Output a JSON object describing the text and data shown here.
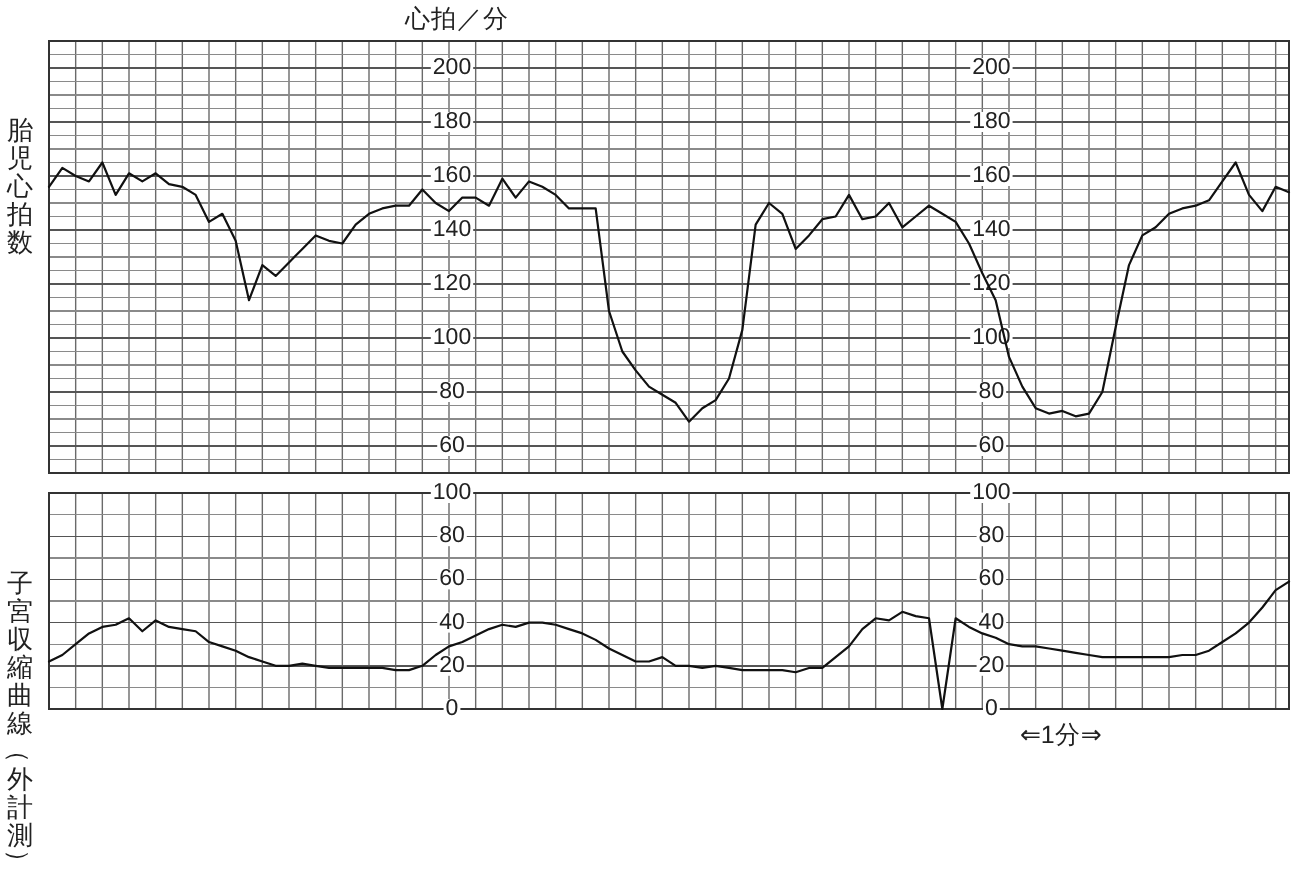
{
  "chart_data": [
    {
      "type": "line",
      "ylabel": "胎児心拍数",
      "annotations": [
        "心拍／分"
      ],
      "grid": true,
      "tick_labels": "y",
      "categories": [
        null,
        null,
        null,
        null,
        null,
        null,
        null,
        null,
        null,
        null,
        null,
        null,
        null,
        null,
        null,
        null,
        null,
        null,
        null,
        null,
        null,
        null,
        null,
        null,
        null,
        null,
        null,
        null,
        null,
        null,
        null,
        null,
        null,
        null,
        null,
        null,
        null,
        null,
        null,
        null,
        null,
        null,
        null,
        null,
        null,
        null,
        null,
        null,
        null,
        null,
        null,
        null,
        null,
        null,
        null,
        null,
        null,
        null,
        null,
        null,
        null,
        null,
        null,
        null,
        null,
        null,
        null,
        null,
        null,
        null,
        null,
        null,
        null,
        null,
        null,
        null,
        null,
        null,
        null,
        null,
        null,
        null,
        null,
        null,
        null,
        null,
        null,
        null,
        null,
        null,
        null,
        null,
        null,
        null
      ],
      "series": [
        {
          "color": "#111111",
          "values": [
            156,
            163,
            160,
            158,
            165,
            153,
            161,
            158,
            161,
            157,
            156,
            153,
            143,
            146,
            136,
            114,
            127,
            123,
            128,
            133,
            138,
            136,
            135,
            142,
            146,
            148,
            149,
            149,
            155,
            150,
            147,
            152,
            152,
            149,
            159,
            152,
            158,
            156,
            153,
            148,
            148,
            148,
            110,
            95,
            88,
            82,
            79,
            76,
            69,
            74,
            77,
            85,
            103,
            142,
            150,
            146,
            133,
            138,
            144,
            145,
            153,
            144,
            145,
            150,
            141,
            145,
            149,
            146,
            143,
            135,
            124,
            114,
            93,
            82,
            74,
            72,
            73,
            71,
            72,
            80,
            104,
            127,
            138,
            141,
            146,
            148,
            149,
            151,
            158,
            165,
            153,
            147,
            156,
            154
          ]
        }
      ],
      "ylim": [
        50,
        210
      ],
      "yticks": [
        {
          "value": 50,
          "label": null
        },
        {
          "value": 55,
          "label": null
        },
        60,
        {
          "value": 65,
          "label": null
        },
        {
          "value": 70,
          "label": null
        },
        {
          "value": 75,
          "label": null
        },
        80,
        {
          "value": 85,
          "label": null
        },
        {
          "value": 90,
          "label": null
        },
        {
          "value": 95,
          "label": null
        },
        100,
        {
          "value": 105,
          "label": null
        },
        {
          "value": 110,
          "label": null
        },
        {
          "value": 115,
          "label": null
        },
        120,
        {
          "value": 125,
          "label": null
        },
        {
          "value": 130,
          "label": null
        },
        {
          "value": 135,
          "label": null
        },
        140,
        {
          "value": 145,
          "label": null
        },
        {
          "value": 150,
          "label": null
        },
        {
          "value": 155,
          "label": null
        },
        160,
        {
          "value": 165,
          "label": null
        },
        {
          "value": 170,
          "label": null
        },
        {
          "value": 175,
          "label": null
        },
        180,
        {
          "value": 185,
          "label": null
        },
        {
          "value": 190,
          "label": null
        },
        {
          "value": 195,
          "label": null
        },
        200,
        {
          "value": 205,
          "label": null
        },
        {
          "value": 210,
          "label": null
        }
      ],
      "y2lim": [
        50,
        210
      ],
      "y2ticks": [
        60,
        80,
        100,
        120,
        140,
        160,
        180,
        200
      ]
    },
    {
      "type": "line",
      "ylabel": "子宮収縮曲線（外計測）",
      "annotations": [
        "⇐1分⇒"
      ],
      "grid": true,
      "tick_labels": "y",
      "categories": [
        null,
        null,
        null,
        null,
        null,
        null,
        null,
        null,
        null,
        null,
        null,
        null,
        null,
        null,
        null,
        null,
        null,
        null,
        null,
        null,
        null,
        null,
        null,
        null,
        null,
        null,
        null,
        null,
        null,
        null,
        null,
        null,
        null,
        null,
        null,
        null,
        null,
        null,
        null,
        null,
        null,
        null,
        null,
        null,
        null,
        null,
        null,
        null,
        null,
        null,
        null,
        null,
        null,
        null,
        null,
        null,
        null,
        null,
        null,
        null,
        null,
        null,
        null,
        null,
        null,
        null,
        null,
        null,
        null,
        null,
        null,
        null,
        null,
        null,
        null,
        null,
        null,
        null,
        null,
        null,
        null,
        null,
        null,
        null,
        null,
        null,
        null,
        null,
        null,
        null,
        null,
        null,
        null,
        null
      ],
      "series": [
        {
          "color": "#111111",
          "values": [
            22,
            25,
            30,
            35,
            38,
            39,
            42,
            36,
            41,
            38,
            37,
            36,
            31,
            29,
            27,
            24,
            22,
            20,
            20,
            21,
            20,
            19,
            19,
            19,
            19,
            19,
            18,
            18,
            20,
            25,
            29,
            31,
            34,
            37,
            39,
            38,
            40,
            40,
            39,
            37,
            35,
            32,
            28,
            25,
            22,
            22,
            24,
            20,
            20,
            19,
            20,
            19,
            18,
            18,
            18,
            18,
            17,
            19,
            19,
            24,
            29,
            37,
            42,
            41,
            45,
            43,
            42,
            0,
            42,
            38,
            35,
            33,
            30,
            29,
            29,
            28,
            27,
            26,
            25,
            24,
            24,
            24,
            24,
            24,
            24,
            25,
            25,
            27,
            31,
            35,
            40,
            47,
            55,
            59
          ]
        }
      ],
      "ylim": [
        0,
        100
      ],
      "yticks": [
        0,
        {
          "value": 10,
          "label": null
        },
        20,
        {
          "value": 30,
          "label": null
        },
        40,
        {
          "value": 50,
          "label": null
        },
        60,
        {
          "value": 70,
          "label": null
        },
        80,
        {
          "value": 90,
          "label": null
        },
        100
      ],
      "y2lim": [
        0,
        100
      ],
      "y2ticks": [
        0,
        20,
        40,
        60,
        80,
        100
      ]
    }
  ]
}
